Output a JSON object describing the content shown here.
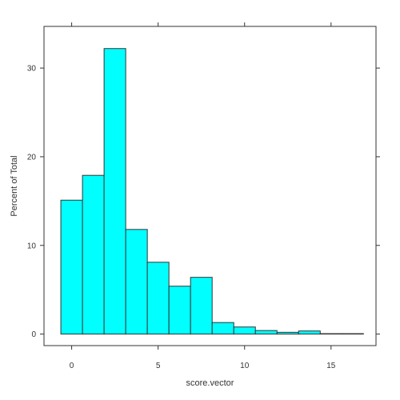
{
  "chart_data": {
    "type": "bar",
    "subtype": "histogram",
    "xlabel": "score.vector",
    "ylabel": "Percent of Total",
    "x_ticks": [
      0,
      5,
      10,
      15
    ],
    "y_ticks": [
      0,
      10,
      20,
      30
    ],
    "xlim": [
      -1.6,
      17.6
    ],
    "ylim": [
      -1.3,
      34.7
    ],
    "bins": [
      {
        "x0": -0.625,
        "x1": 0.625,
        "value": 15.1
      },
      {
        "x0": 0.625,
        "x1": 1.875,
        "value": 17.9
      },
      {
        "x0": 1.875,
        "x1": 3.125,
        "value": 32.2
      },
      {
        "x0": 3.125,
        "x1": 4.375,
        "value": 11.8
      },
      {
        "x0": 4.375,
        "x1": 5.625,
        "value": 8.1
      },
      {
        "x0": 5.625,
        "x1": 6.875,
        "value": 5.4
      },
      {
        "x0": 6.875,
        "x1": 8.125,
        "value": 6.4
      },
      {
        "x0": 8.125,
        "x1": 9.375,
        "value": 1.3
      },
      {
        "x0": 9.375,
        "x1": 10.625,
        "value": 0.8
      },
      {
        "x0": 10.625,
        "x1": 11.875,
        "value": 0.4
      },
      {
        "x0": 11.875,
        "x1": 13.125,
        "value": 0.2
      },
      {
        "x0": 13.125,
        "x1": 14.375,
        "value": 0.35
      },
      {
        "x0": 14.375,
        "x1": 15.625,
        "value": 0.05
      },
      {
        "x0": 15.625,
        "x1": 16.875,
        "value": 0.05
      }
    ],
    "grid": false,
    "legend": "none",
    "colors": {
      "bar_fill": "#00FFFF",
      "bar_stroke": "#333333",
      "frame": "#333333"
    }
  }
}
